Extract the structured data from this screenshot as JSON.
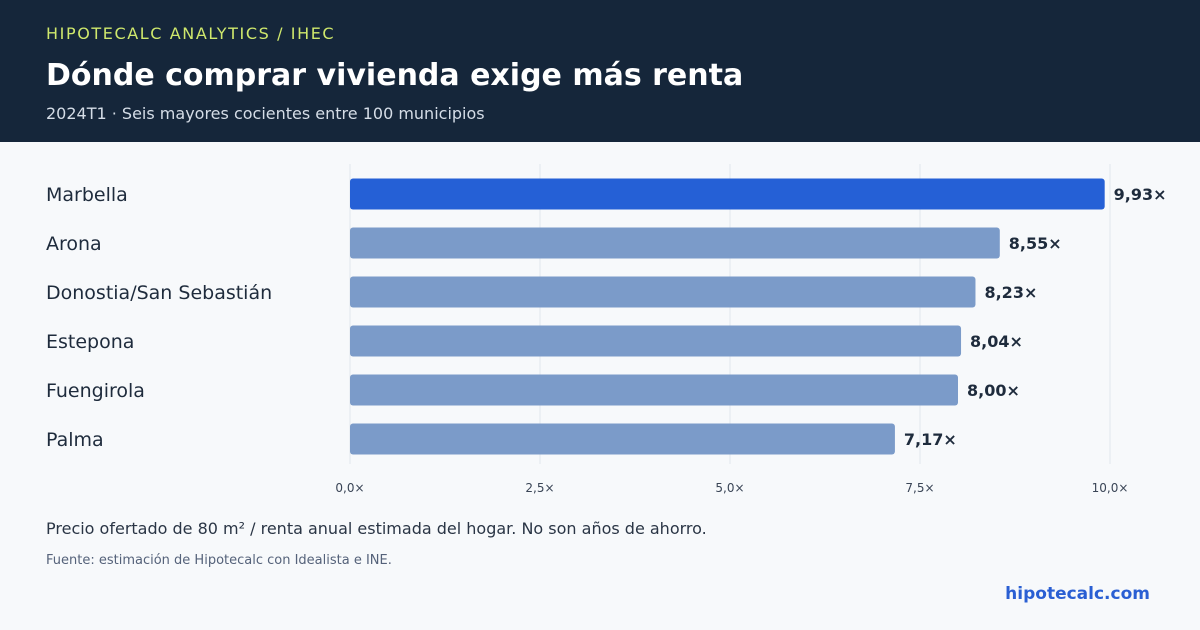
{
  "header": {
    "eyebrow": "HIPOTECALC ANALYTICS / IHEC",
    "title": "Dónde comprar vivienda exige más renta",
    "subtitle": "2024T1 · Seis mayores cocientes entre 100 municipios"
  },
  "chart_data": {
    "type": "bar",
    "orientation": "horizontal",
    "categories": [
      "Marbella",
      "Arona",
      "Donostia/San Sebastián",
      "Estepona",
      "Fuengirola",
      "Palma"
    ],
    "values": [
      9.93,
      8.55,
      8.23,
      8.04,
      8.0,
      7.17
    ],
    "value_labels": [
      "9,93×",
      "8,55×",
      "8,23×",
      "8,04×",
      "8,00×",
      "7,17×"
    ],
    "xlim": [
      0,
      10
    ],
    "ticks": [
      0,
      2.5,
      5,
      7.5,
      10
    ],
    "tick_labels": [
      "0,0×",
      "2,5×",
      "5,0×",
      "7,5×",
      "10,0×"
    ],
    "grid": true,
    "colors": {
      "highlight": "#2560d6",
      "bar": "#7b9bc9",
      "grid": "#e1e6ec",
      "label": "#1e2b3c",
      "tick": "#3a4556"
    }
  },
  "footer": {
    "note": "Precio ofertado de 80 m² / renta anual estimada del hogar. No son años de ahorro.",
    "source": "Fuente: estimación de Hipotecalc con Idealista e INE.",
    "brand": "hipotecalc.com"
  }
}
